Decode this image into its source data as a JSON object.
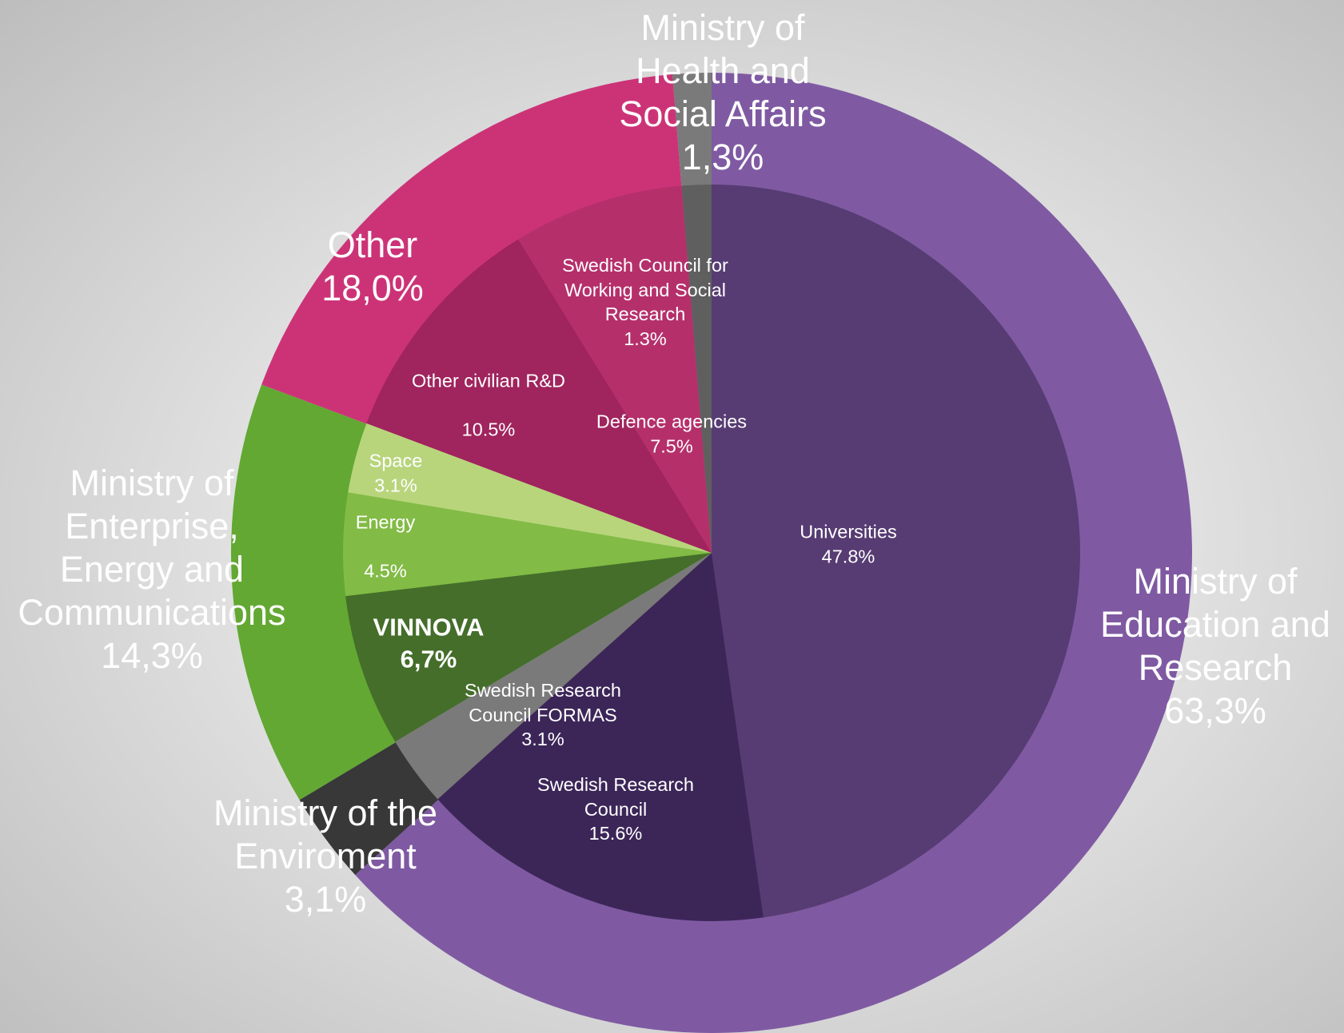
{
  "chart_data": {
    "type": "nested-pie",
    "outer": {
      "categories": [
        "Ministry of Education and Research",
        "Ministry of the Enviroment",
        "Ministry of Enterprise, Energy and Communications",
        "Other",
        "Ministry of Health and Social Affairs"
      ],
      "values": [
        63.3,
        3.1,
        14.3,
        18.0,
        1.3
      ],
      "value_labels": [
        "63,3%",
        "3,1%",
        "14,3%",
        "18,0%",
        "1,3%"
      ],
      "colors": [
        "#7f5aa2",
        "#383838",
        "#62a832",
        "#cc3377",
        "#7a7a7a"
      ]
    },
    "inner": {
      "categories": [
        "Universities",
        "Swedish Research Council",
        "Swedish Research Council FORMAS",
        "VINNOVA",
        "Energy",
        "Space",
        "Other civilian R&D",
        "Defence agencies",
        "Swedish Council for Working and Social Research"
      ],
      "values": [
        47.8,
        15.6,
        3.1,
        6.7,
        4.5,
        3.1,
        10.5,
        7.5,
        1.3
      ],
      "value_labels": [
        "47.8%",
        "15.6%",
        "3.1%",
        "6,7%",
        "4.5%",
        "3.1%",
        "10.5%",
        "7.5%",
        "1.3%"
      ],
      "colors": [
        "#573c73",
        "#3c2658",
        "#7a7a7a",
        "#446e2a",
        "#82bb45",
        "#b8d57c",
        "#a0245d",
        "#b5306b",
        "#5f5f5f"
      ]
    }
  }
}
